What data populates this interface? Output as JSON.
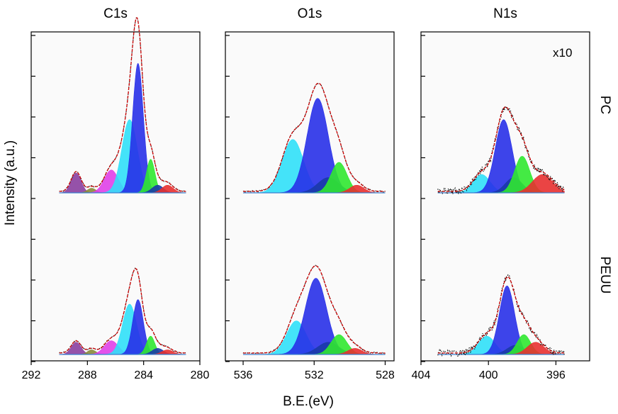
{
  "chart_data": {
    "type": "line",
    "description_free": true,
    "xlabel": "B.E.(eV)",
    "ylabel": "Intensity (a.u.)",
    "row_labels": [
      "PC",
      "PEUU"
    ],
    "annotation": "x10",
    "component_colors": {
      "violet": "#8a3fa0",
      "olive": "#8a8a3a",
      "magenta": "#e040e8",
      "cyan": "#30e0f8",
      "blue": "#2830e8",
      "darkblue": "#1a3aa8",
      "green": "#30e830",
      "red": "#e83030",
      "envelope": "#cc0000",
      "raw": "#111111"
    },
    "panels": [
      {
        "title": "C1s",
        "xlim": [
          292,
          280
        ],
        "xticks": [
          "292",
          "288",
          "284",
          "280"
        ],
        "xtick_values": [
          292,
          288,
          284,
          280
        ],
        "data_range": [
          290,
          281
        ],
        "rows": [
          {
            "label": "PC",
            "components": [
              {
                "name": "violet",
                "center": 288.8,
                "height": 0.13,
                "width": 0.35
              },
              {
                "name": "olive",
                "center": 287.7,
                "height": 0.03,
                "width": 0.3
              },
              {
                "name": "magenta",
                "center": 286.3,
                "height": 0.15,
                "width": 0.5
              },
              {
                "name": "cyan",
                "center": 285.0,
                "height": 0.48,
                "width": 0.55
              },
              {
                "name": "blue",
                "center": 284.4,
                "height": 0.85,
                "width": 0.38
              },
              {
                "name": "green",
                "center": 283.5,
                "height": 0.22,
                "width": 0.3
              },
              {
                "name": "darkblue",
                "center": 283.0,
                "height": 0.05,
                "width": 0.4
              },
              {
                "name": "red",
                "center": 282.3,
                "height": 0.05,
                "width": 0.4
              }
            ]
          },
          {
            "label": "PEUU",
            "components": [
              {
                "name": "violet",
                "center": 288.8,
                "height": 0.08,
                "width": 0.35
              },
              {
                "name": "olive",
                "center": 287.7,
                "height": 0.03,
                "width": 0.3
              },
              {
                "name": "magenta",
                "center": 286.3,
                "height": 0.09,
                "width": 0.5
              },
              {
                "name": "cyan",
                "center": 285.0,
                "height": 0.33,
                "width": 0.5
              },
              {
                "name": "blue",
                "center": 284.4,
                "height": 0.36,
                "width": 0.38
              },
              {
                "name": "green",
                "center": 283.5,
                "height": 0.12,
                "width": 0.3
              },
              {
                "name": "darkblue",
                "center": 283.0,
                "height": 0.04,
                "width": 0.4
              },
              {
                "name": "red",
                "center": 282.3,
                "height": 0.03,
                "width": 0.4
              }
            ]
          }
        ]
      },
      {
        "title": "O1s",
        "xlim": [
          537,
          527.5
        ],
        "xticks": [
          "536",
          "532",
          "528"
        ],
        "xtick_values": [
          536,
          532,
          528
        ],
        "data_range": [
          536,
          528
        ],
        "rows": [
          {
            "label": "PC",
            "components": [
              {
                "name": "cyan",
                "center": 533.2,
                "height": 0.35,
                "width": 0.6
              },
              {
                "name": "blue",
                "center": 531.8,
                "height": 0.62,
                "width": 0.6
              },
              {
                "name": "darkblue",
                "center": 531.2,
                "height": 0.1,
                "width": 0.6
              },
              {
                "name": "green",
                "center": 530.6,
                "height": 0.2,
                "width": 0.45
              },
              {
                "name": "red",
                "center": 529.6,
                "height": 0.05,
                "width": 0.4
              }
            ]
          },
          {
            "label": "PEUU",
            "components": [
              {
                "name": "cyan",
                "center": 533.0,
                "height": 0.22,
                "width": 0.55
              },
              {
                "name": "blue",
                "center": 531.9,
                "height": 0.5,
                "width": 0.6
              },
              {
                "name": "darkblue",
                "center": 531.2,
                "height": 0.08,
                "width": 0.6
              },
              {
                "name": "green",
                "center": 530.6,
                "height": 0.13,
                "width": 0.45
              },
              {
                "name": "red",
                "center": 529.7,
                "height": 0.04,
                "width": 0.4
              }
            ]
          }
        ]
      },
      {
        "title": "N1s",
        "xlim": [
          404,
          394
        ],
        "xticks": [
          "404",
          "400",
          "396"
        ],
        "xtick_values": [
          404,
          400,
          396
        ],
        "data_range": [
          403,
          395.5
        ],
        "rows": [
          {
            "label": "PC",
            "components": [
              {
                "name": "cyan",
                "center": 400.4,
                "height": 0.12,
                "width": 0.5
              },
              {
                "name": "blue",
                "center": 399.1,
                "height": 0.48,
                "width": 0.5
              },
              {
                "name": "darkblue",
                "center": 398.5,
                "height": 0.1,
                "width": 0.5
              },
              {
                "name": "green",
                "center": 398.0,
                "height": 0.24,
                "width": 0.45
              },
              {
                "name": "red",
                "center": 396.8,
                "height": 0.12,
                "width": 0.6
              }
            ]
          },
          {
            "label": "PEUU",
            "components": [
              {
                "name": "cyan",
                "center": 400.1,
                "height": 0.12,
                "width": 0.5
              },
              {
                "name": "blue",
                "center": 398.9,
                "height": 0.45,
                "width": 0.45
              },
              {
                "name": "darkblue",
                "center": 398.4,
                "height": 0.06,
                "width": 0.5
              },
              {
                "name": "green",
                "center": 397.9,
                "height": 0.13,
                "width": 0.4
              },
              {
                "name": "red",
                "center": 397.2,
                "height": 0.08,
                "width": 0.5
              }
            ]
          }
        ]
      }
    ]
  }
}
